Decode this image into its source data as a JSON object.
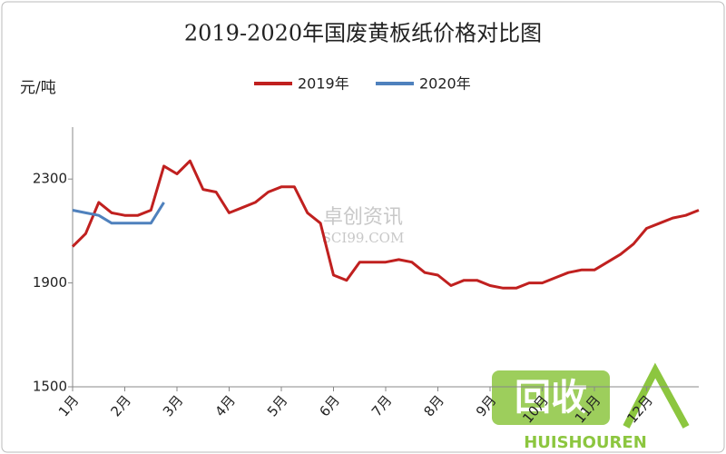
{
  "chart_data": {
    "type": "line",
    "title": "2019-2020年国废黄板纸价格对比图",
    "y_label": "元/吨",
    "categories": [
      "1月",
      null,
      null,
      null,
      "2月",
      null,
      null,
      null,
      "3月",
      null,
      null,
      null,
      "4月",
      null,
      null,
      null,
      "5月",
      null,
      null,
      null,
      "6月",
      null,
      null,
      null,
      "7月",
      null,
      null,
      null,
      "8月",
      null,
      null,
      null,
      "9月",
      null,
      null,
      null,
      "10月",
      null,
      null,
      null,
      "11月",
      null,
      null,
      null,
      "12月",
      null,
      null,
      null,
      null
    ],
    "series": [
      {
        "name": "2019年",
        "color": "#c0201f",
        "values": [
          2040,
          2090,
          2210,
          2170,
          2160,
          2160,
          2180,
          2350,
          2320,
          2370,
          2260,
          2250,
          2170,
          2190,
          2210,
          2250,
          2270,
          2270,
          2170,
          2130,
          1930,
          1910,
          1980,
          1980,
          1980,
          1990,
          1980,
          1940,
          1930,
          1890,
          1910,
          1910,
          1890,
          1880,
          1880,
          1900,
          1900,
          1920,
          1940,
          1950,
          1950,
          1980,
          2010,
          2050,
          2110,
          2130,
          2150,
          2160,
          2180
        ]
      },
      {
        "name": "2020年",
        "color": "#4f81bd",
        "values": [
          2180,
          2170,
          2160,
          2130,
          2130,
          2130,
          2130,
          2210,
          null,
          null,
          null,
          null,
          null,
          null,
          null,
          null,
          null,
          null,
          null,
          null,
          null,
          null,
          null,
          null,
          null,
          null,
          null,
          null,
          null,
          null,
          null,
          null,
          null,
          null,
          null,
          null,
          null,
          null,
          null,
          null,
          null,
          null,
          null,
          null,
          null,
          null,
          null,
          null,
          null
        ]
      }
    ],
    "ylim": [
      1500,
      2500
    ],
    "yticks": [
      1500,
      1900,
      2300
    ],
    "grid": false,
    "legend": "top",
    "watermarks": [
      "卓创资讯",
      "SCI99.COM",
      "回收",
      "HUISHOUREN"
    ]
  }
}
